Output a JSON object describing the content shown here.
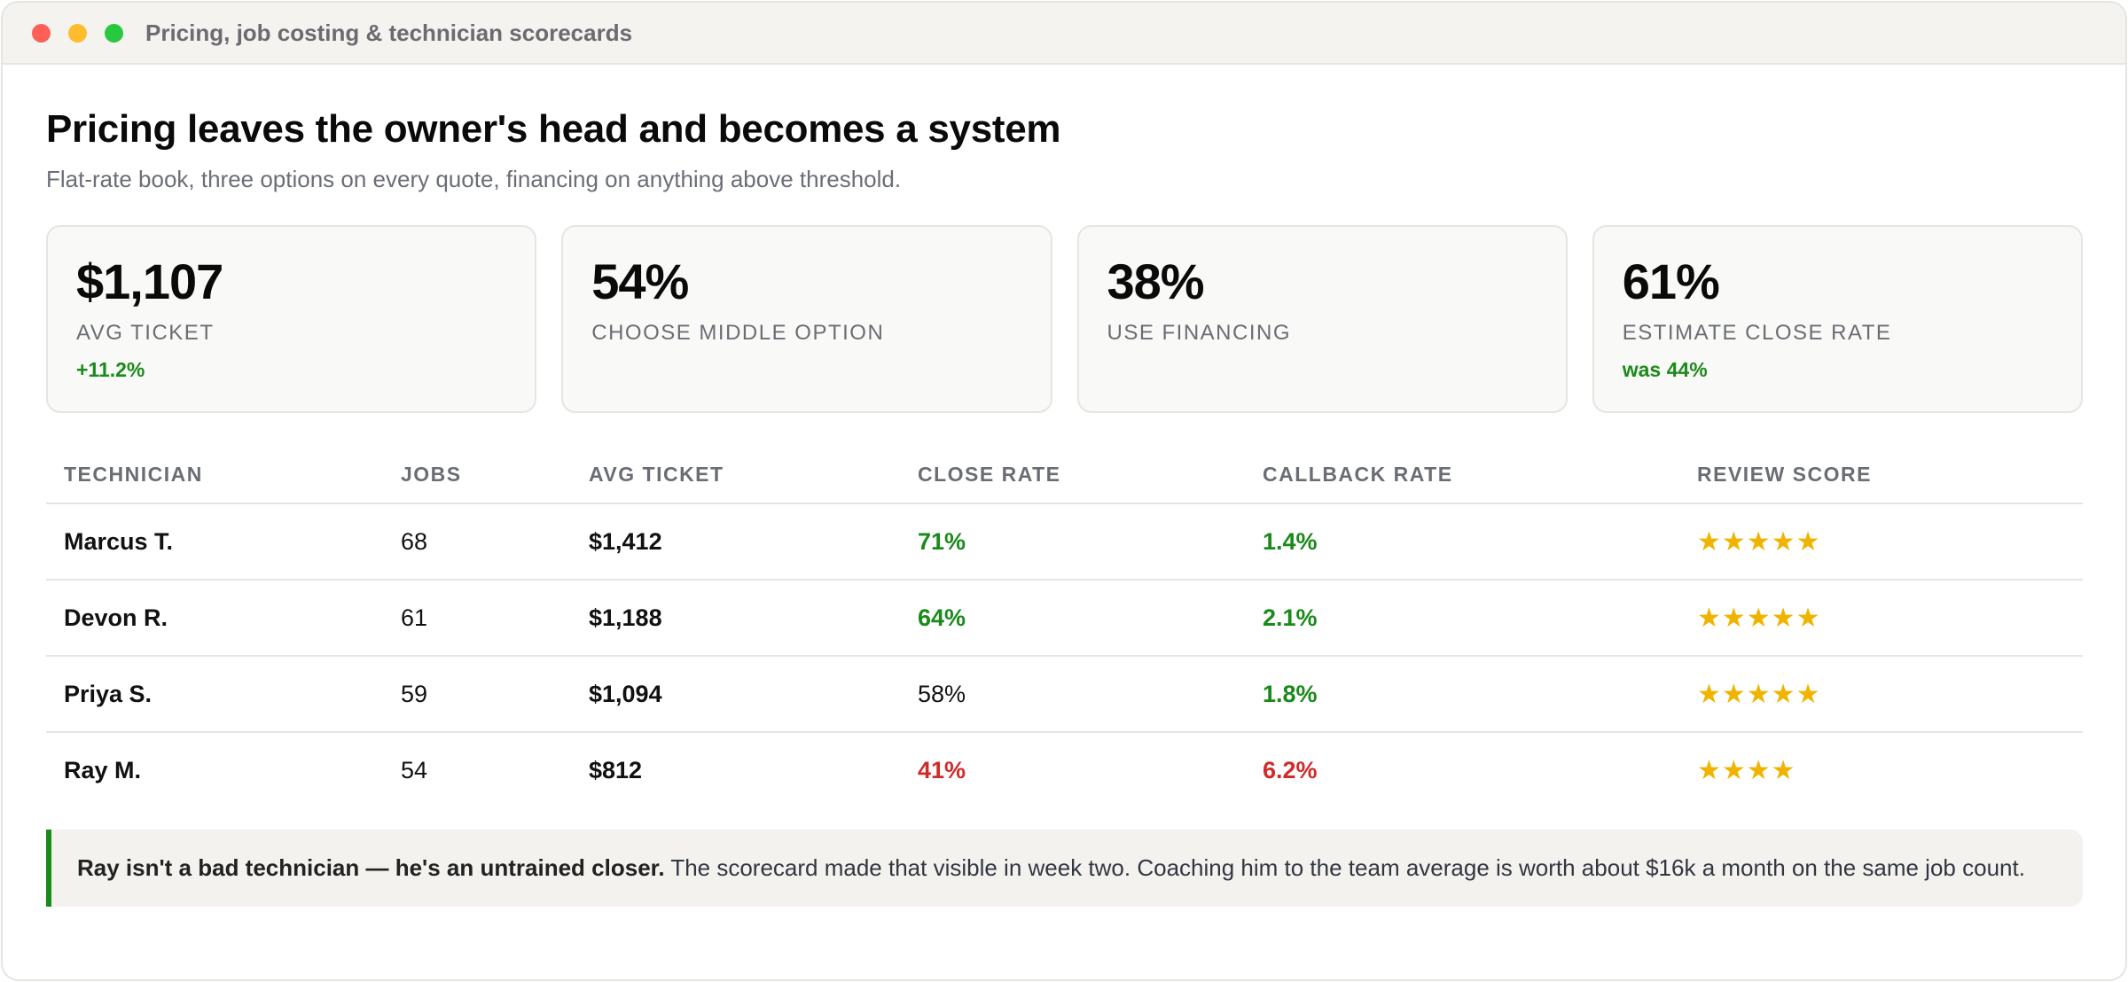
{
  "window": {
    "title": "Pricing, job costing & technician scorecards"
  },
  "header": {
    "title": "Pricing leaves the owner's head and becomes a system",
    "subtitle": "Flat-rate book, three options on every quote, financing on anything above threshold."
  },
  "cards": [
    {
      "value": "$1,107",
      "label": "AVG TICKET",
      "note": "+11.2%"
    },
    {
      "value": "54%",
      "label": "CHOOSE MIDDLE OPTION",
      "note": ""
    },
    {
      "value": "38%",
      "label": "USE FINANCING",
      "note": ""
    },
    {
      "value": "61%",
      "label": "ESTIMATE CLOSE RATE",
      "note": "was 44%"
    }
  ],
  "table": {
    "headers": [
      "TECHNICIAN",
      "JOBS",
      "AVG TICKET",
      "CLOSE RATE",
      "CALLBACK RATE",
      "REVIEW SCORE"
    ],
    "rows": [
      {
        "name": "Marcus T.",
        "jobs": "68",
        "ticket": "$1,412",
        "close": "71%",
        "close_status": "good",
        "callback": "1.4%",
        "callback_status": "good",
        "stars": "★★★★★",
        "rating": 5
      },
      {
        "name": "Devon R.",
        "jobs": "61",
        "ticket": "$1,188",
        "close": "64%",
        "close_status": "good",
        "callback": "2.1%",
        "callback_status": "good",
        "stars": "★★★★★",
        "rating": 5
      },
      {
        "name": "Priya S.",
        "jobs": "59",
        "ticket": "$1,094",
        "close": "58%",
        "close_status": "neutral",
        "callback": "1.8%",
        "callback_status": "good",
        "stars": "★★★★★",
        "rating": 5
      },
      {
        "name": "Ray M.",
        "jobs": "54",
        "ticket": "$812",
        "close": "41%",
        "close_status": "bad",
        "callback": "6.2%",
        "callback_status": "bad",
        "stars": "★★★★",
        "rating": 4
      }
    ]
  },
  "callout": {
    "bold": "Ray isn't a bad technician — he's an untrained closer.",
    "text": " The scorecard made that visible in week two. Coaching him to the team average is worth about $16k a month on the same job count."
  },
  "colors": {
    "good": "#1a8a1a",
    "bad": "#d22a2a",
    "star": "#f0b400"
  }
}
